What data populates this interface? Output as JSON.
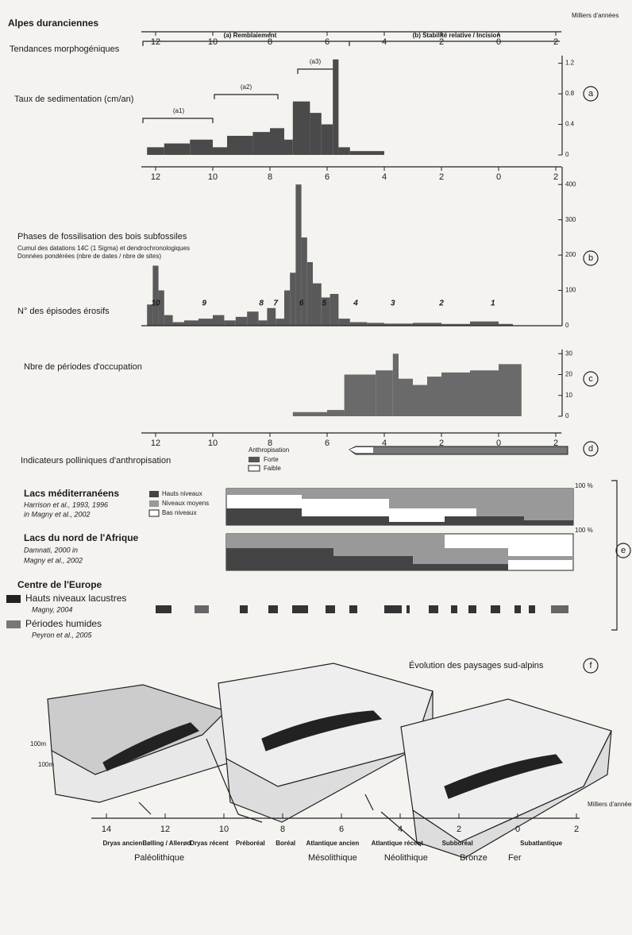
{
  "header": {
    "title": "Alpes duranciennes",
    "unit": "Milliers d'années"
  },
  "time_axis": {
    "xlim": [
      12.5,
      -2.2
    ],
    "xticks": [
      12,
      10,
      8,
      6,
      4,
      2,
      0,
      {
        "value": -2,
        "label": "2"
      }
    ]
  },
  "tendances": {
    "label": "Tendances morphogéniques",
    "a": "(a) Remblaiement",
    "b": "(b) Stabilité relative / Incision",
    "a1": "(a1)",
    "a2": "(a2)",
    "a3": "(a3)"
  },
  "panel_a": {
    "letter": "a",
    "type": "histogram",
    "title": "Taux de sedimentation (cm/an)",
    "color": "#4a4a4a",
    "bins": [
      12.3,
      11.7,
      10.8,
      10,
      9.5,
      8.6,
      8,
      7.5,
      7.2,
      6.6,
      6.2,
      5.8,
      5.6,
      5.2,
      4
    ],
    "values": [
      0.1,
      0.15,
      0.2,
      0.1,
      0.25,
      0.3,
      0.35,
      0.2,
      0.7,
      0.55,
      0.4,
      1.25,
      0.1,
      0.05
    ],
    "ylim": [
      0,
      1.3
    ],
    "yticks": [
      0,
      0.4,
      0.8,
      1.2
    ]
  },
  "panel_b": {
    "letter": "b",
    "type": "histogram",
    "title": "Phases de fossilisation des bois subfossiles",
    "note1": "Cumul des datations 14C (1 Sigma) et dendrochronologiques",
    "note2": "Données pondérées (nbre de dates / nbre de sites)",
    "color": "#5a5a5a",
    "bins": [
      12.3,
      12.1,
      11.9,
      11.7,
      11.4,
      11,
      10.5,
      10,
      9.6,
      9.2,
      8.8,
      8.4,
      8.1,
      7.8,
      7.5,
      7.3,
      7.1,
      6.9,
      6.7,
      6.5,
      6.2,
      5.9,
      5.6,
      5.2,
      4.6,
      4,
      3,
      2,
      1,
      0,
      -0.5
    ],
    "values": [
      60,
      170,
      100,
      30,
      10,
      15,
      20,
      30,
      15,
      25,
      40,
      15,
      50,
      20,
      100,
      150,
      400,
      250,
      180,
      120,
      80,
      90,
      20,
      10,
      8,
      6,
      8,
      5,
      12,
      5
    ],
    "ylim": [
      0,
      450
    ],
    "yticks": [
      0,
      100,
      200,
      300,
      400
    ],
    "episodes": {
      "title": "N° des épisodes érosifs",
      "x": [
        12,
        10.3,
        8.3,
        7.8,
        6.9,
        6.1,
        5,
        3.7,
        2,
        0.2
      ],
      "labels": [
        10,
        9,
        8,
        7,
        6,
        5,
        4,
        3,
        2,
        1
      ]
    }
  },
  "panel_c": {
    "letter": "c",
    "type": "histogram",
    "title": "Nbre de périodes d'occupation",
    "color": "#6a6a6a",
    "bins": [
      7.2,
      6,
      5.4,
      4.3,
      3.7,
      3.5,
      3,
      2.5,
      2,
      1,
      0,
      -0.8
    ],
    "values": [
      2,
      3,
      20,
      22,
      30,
      18,
      15,
      19,
      21,
      22,
      25
    ],
    "ylim": [
      0,
      32
    ],
    "yticks": [
      0,
      10,
      20,
      30
    ]
  },
  "panel_d": {
    "letter": "d",
    "title": "Indicateurs polliniques d'anthropisation",
    "legend_title": "Anthropisation",
    "strong": "Forte",
    "weak": "Faible"
  },
  "panel_e": {
    "letter": "e",
    "pct": "100 %",
    "lakes": [
      {
        "name": "Lacs méditerranéens",
        "ref1": "Harrison et al., 1993, 1996",
        "ref2": "in Magny et al., 2002"
      },
      {
        "name": "Lacs du nord de l'Afrique",
        "ref1": "Damnati, 2000 in",
        "ref2": "Magny et al., 2002"
      }
    ],
    "legend": [
      "Hauts niveaux",
      "Niveaux moyens",
      "Bas niveaux"
    ],
    "europe": {
      "title": "Centre de l'Europe",
      "high": "Hauts niveaux lacustres",
      "high_ref": "Magny, 2004",
      "wet": "Périodes humides",
      "wet_ref": "Peyron et al., 2005"
    }
  },
  "panel_f": {
    "letter": "f",
    "title": "Évolution des paysages sud-alpins",
    "scale": "100m"
  },
  "bottom_axis": {
    "xticks": [
      14,
      12,
      10,
      8,
      6,
      4,
      2,
      0,
      {
        "value": -2,
        "label": "2"
      }
    ],
    "chronozones": [
      "Dryas ancien",
      "Bølling / Allerød",
      "Dryas récent",
      "Préboréal",
      "Boréal",
      "Atlantique ancien",
      "Atlantique récent",
      "Subboréal",
      "Subatlantique"
    ],
    "cultures": [
      "Paléolithique",
      "Mésolithique",
      "Néolithique",
      "Bronze",
      "Fer"
    ]
  }
}
